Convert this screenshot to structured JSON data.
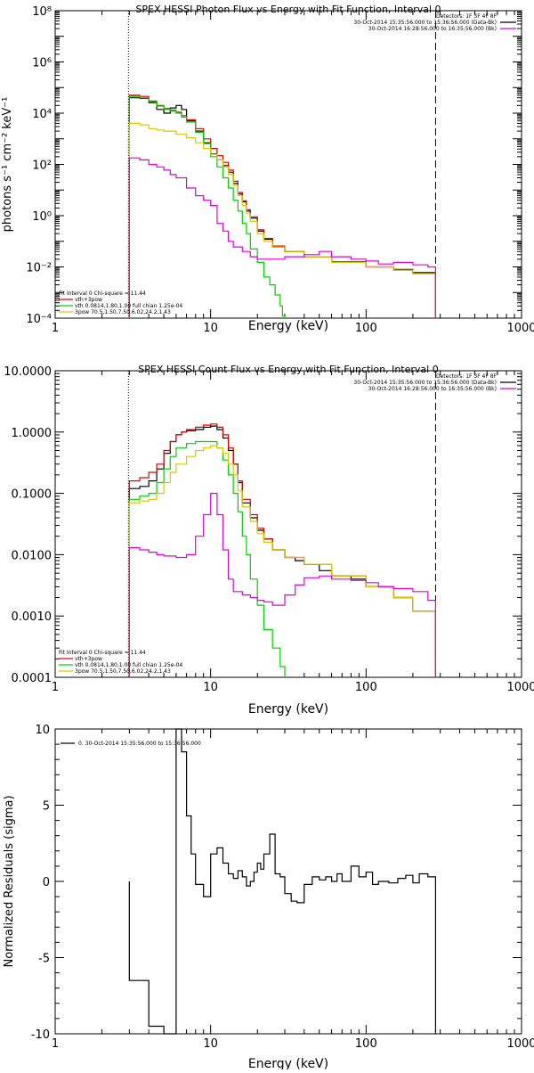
{
  "chart_data": [
    {
      "type": "line",
      "title": "SPEX HESSI Photon Flux vs Energy with Fit Function, Interval 0",
      "xlabel": "Energy (keV)",
      "ylabel": "photons s⁻¹ cm⁻² keV⁻¹",
      "xscale": "log",
      "yscale": "log",
      "xlim": [
        1,
        1000
      ],
      "ylim": [
        0.0001,
        100000000
      ],
      "x_tick_labels": [
        "1",
        "10",
        "100",
        "1000"
      ],
      "y_tick_labels": [
        "10⁻⁴",
        "10⁻²",
        "10⁰",
        "10²",
        "10⁴",
        "10⁶",
        "10⁸"
      ],
      "vlines": [
        3.0,
        280
      ],
      "legend_top": [
        "Detectors: 1F 3F 4F 8F",
        "30-Oct-2014 15:35:56.000 to 15:36:56.000 (Data-Bk)",
        "30-Oct-2014 16:28:56.000 to 16:35:56.000 (Bk)"
      ],
      "legend_bottom": [
        "Fit Interval 0   Chi-square = 11.44",
        "vth+3pow",
        "vth 0.0814,1.80,1.00  full chian 1.25e-04",
        "3pow 70.5,1.50,7.50,6.02,24.2,1.43"
      ],
      "series": [
        {
          "name": "30-Oct-2014 15:35:56.000 to 15:36:56.000 (Data-Bk)",
          "color": "#000000",
          "x": [
            3,
            3.5,
            4,
            4.5,
            5,
            5.5,
            6,
            6.5,
            7,
            8,
            9,
            10,
            11,
            12,
            13,
            14,
            15,
            16,
            17,
            18,
            20,
            22,
            25,
            30,
            40,
            60,
            100,
            150,
            200,
            280
          ],
          "y": [
            40000,
            38000,
            26000,
            14000,
            10000,
            16000,
            20000,
            14000,
            5000,
            2000,
            700,
            260,
            150,
            90,
            50,
            18,
            7,
            3.5,
            1.5,
            0.8,
            0.25,
            0.12,
            0.06,
            0.04,
            0.025,
            0.016,
            0.01,
            0.008,
            0.006,
            0.003
          ]
        },
        {
          "name": "vth+3pow",
          "color": "#e00000",
          "x": [
            3,
            3.5,
            4,
            4.5,
            5,
            5.5,
            6,
            6.5,
            7,
            8,
            9,
            10,
            11,
            12,
            13,
            14,
            15,
            16,
            17,
            18,
            20,
            22,
            25,
            30,
            40,
            60,
            100,
            150,
            200,
            280
          ],
          "y": [
            50000,
            45000,
            30000,
            20000,
            15000,
            13000,
            11000,
            8000,
            5500,
            2500,
            1000,
            420,
            220,
            120,
            60,
            22,
            8,
            3.8,
            1.7,
            0.9,
            0.28,
            0.13,
            0.065,
            0.04,
            0.025,
            0.016,
            0.01,
            0.0075,
            0.0055,
            0.003
          ]
        },
        {
          "name": "vth",
          "color": "#00d000",
          "x": [
            3,
            3.5,
            4,
            4.5,
            5,
            5.5,
            6,
            6.5,
            7,
            8,
            9,
            10,
            11,
            12,
            13,
            14,
            15,
            16,
            17,
            18,
            20,
            22,
            24,
            26,
            28,
            29,
            30
          ],
          "y": [
            45000,
            40000,
            28000,
            19000,
            14000,
            12000,
            10000,
            7000,
            4500,
            1800,
            650,
            200,
            80,
            30,
            12,
            4,
            1.5,
            0.5,
            0.2,
            0.05,
            0.015,
            0.004,
            0.002,
            0.0008,
            0.0003,
            0.00012,
            0.0001
          ]
        },
        {
          "name": "3pow",
          "color": "#d8c800",
          "x": [
            3,
            3.5,
            4,
            4.5,
            5,
            6,
            7,
            8,
            9,
            10,
            11,
            12,
            13,
            14,
            15,
            16,
            17,
            18,
            20,
            22,
            25,
            30,
            40,
            60,
            100,
            150,
            200,
            280
          ],
          "y": [
            4000,
            3500,
            2500,
            2200,
            2000,
            1500,
            1100,
            700,
            420,
            250,
            150,
            80,
            40,
            15,
            6,
            2.5,
            1.2,
            0.6,
            0.2,
            0.1,
            0.06,
            0.04,
            0.025,
            0.015,
            0.01,
            0.0075,
            0.0055,
            0.003
          ]
        },
        {
          "name": "30-Oct-2014 16:28:56.000 to 16:35:56.000 (Bk)",
          "color": "#e000e0",
          "x": [
            3,
            3.5,
            4,
            4.5,
            5,
            5.5,
            6,
            7,
            8,
            9,
            10,
            11,
            12,
            13,
            14,
            16,
            18,
            20,
            22,
            25,
            30,
            35,
            40,
            50,
            60,
            80,
            100,
            120,
            150,
            200,
            250,
            280
          ],
          "y": [
            180,
            150,
            100,
            80,
            60,
            40,
            30,
            12,
            6,
            4,
            2.5,
            0.5,
            0.25,
            0.1,
            0.06,
            0.04,
            0.025,
            0.02,
            0.02,
            0.02,
            0.025,
            0.025,
            0.03,
            0.04,
            0.025,
            0.02,
            0.017,
            0.013,
            0.015,
            0.012,
            0.01,
            0.008
          ]
        }
      ]
    },
    {
      "type": "line",
      "title": "SPEX HESSI Count Flux vs Energy with Fit Function, Interval 0",
      "xlabel": "Energy (keV)",
      "ylabel": "",
      "xscale": "log",
      "yscale": "log",
      "xlim": [
        1,
        1000
      ],
      "ylim": [
        0.0001,
        10
      ],
      "x_tick_labels": [
        "1",
        "10",
        "100",
        "1000"
      ],
      "y_tick_labels": [
        "0.0001",
        "0.0010",
        "0.0100",
        "0.1000",
        "1.0000",
        "10.0000"
      ],
      "vlines": [
        3.0,
        280
      ],
      "legend_top": [
        "Detectors: 1F 3F 4F 8F",
        "30-Oct-2014 15:35:56.000 to 15:36:56.000 (Data-Bk)",
        "30-Oct-2014 16:28:56.000 to 16:35:56.000 (Bk)"
      ],
      "legend_bottom": [
        "Fit Interval 0   Chi-square = 11.44",
        "vth+3pow",
        "vth 0.0814,1.80,1.00  full chian 1.25e-04",
        "3pow 70.5,1.50,7.50,6.02,24.2,1.43"
      ],
      "series": [
        {
          "name": "30-Oct-2014 15:35:56.000 to 15:36:56.000 (Data-Bk)",
          "color": "#000000",
          "x": [
            3,
            3.5,
            4,
            4.5,
            5,
            5.5,
            6,
            6.5,
            7,
            8,
            9,
            10,
            11,
            12,
            13,
            14,
            15,
            16,
            18,
            20,
            22,
            25,
            30,
            35,
            40,
            50,
            60,
            80,
            100,
            150,
            200,
            280
          ],
          "y": [
            0.12,
            0.13,
            0.16,
            0.25,
            0.45,
            0.7,
            0.9,
            1.0,
            1.05,
            1.1,
            1.2,
            1.25,
            1.1,
            0.8,
            0.5,
            0.3,
            0.15,
            0.07,
            0.04,
            0.025,
            0.018,
            0.012,
            0.009,
            0.008,
            0.007,
            0.0055,
            0.0045,
            0.004,
            0.003,
            0.002,
            0.0012,
            0.0006
          ]
        },
        {
          "name": "vth+3pow",
          "color": "#e00000",
          "x": [
            3,
            3.5,
            4,
            4.5,
            5,
            5.5,
            6,
            6.5,
            7,
            8,
            9,
            10,
            11,
            12,
            13,
            14,
            15,
            16,
            18,
            20,
            22,
            25,
            30,
            40,
            60,
            100,
            150,
            200,
            280
          ],
          "y": [
            0.16,
            0.18,
            0.22,
            0.3,
            0.5,
            0.7,
            0.9,
            1.0,
            1.1,
            1.2,
            1.3,
            1.35,
            1.2,
            0.9,
            0.55,
            0.3,
            0.16,
            0.08,
            0.045,
            0.027,
            0.018,
            0.012,
            0.009,
            0.007,
            0.0045,
            0.003,
            0.002,
            0.0012,
            0.0006
          ]
        },
        {
          "name": "vth",
          "color": "#00d000",
          "x": [
            3,
            3.5,
            4,
            4.5,
            5,
            5.5,
            6,
            7,
            8,
            9,
            10,
            11,
            12,
            13,
            14,
            15,
            16,
            17,
            18,
            20,
            22,
            25,
            28,
            30
          ],
          "y": [
            0.08,
            0.09,
            0.1,
            0.15,
            0.25,
            0.4,
            0.55,
            0.65,
            0.7,
            0.7,
            0.7,
            0.55,
            0.35,
            0.2,
            0.1,
            0.05,
            0.02,
            0.01,
            0.004,
            0.0015,
            0.0006,
            0.0003,
            0.00015,
            0.0001
          ]
        },
        {
          "name": "3pow",
          "color": "#d8c800",
          "x": [
            3,
            3.5,
            4,
            4.5,
            5,
            5.5,
            6,
            7,
            8,
            9,
            10,
            11,
            12,
            13,
            14,
            15,
            16,
            18,
            20,
            22,
            25,
            30,
            40,
            60,
            100,
            150,
            200,
            280
          ],
          "y": [
            0.07,
            0.075,
            0.08,
            0.1,
            0.15,
            0.22,
            0.3,
            0.4,
            0.5,
            0.55,
            0.6,
            0.55,
            0.45,
            0.3,
            0.2,
            0.11,
            0.06,
            0.035,
            0.022,
            0.016,
            0.012,
            0.009,
            0.007,
            0.0045,
            0.003,
            0.002,
            0.0012,
            0.0006
          ]
        },
        {
          "name": "30-Oct-2014 16:28:56.000 to 16:35:56.000 (Bk)",
          "color": "#e000e0",
          "x": [
            3,
            3.5,
            4,
            4.5,
            5,
            6,
            7,
            8,
            9,
            10,
            11,
            12,
            13,
            14,
            16,
            18,
            20,
            22,
            25,
            30,
            35,
            40,
            50,
            60,
            80,
            100,
            120,
            150,
            200,
            250,
            280
          ],
          "y": [
            0.013,
            0.012,
            0.011,
            0.01,
            0.0095,
            0.009,
            0.01,
            0.02,
            0.045,
            0.1,
            0.045,
            0.012,
            0.004,
            0.0025,
            0.0022,
            0.002,
            0.0018,
            0.0017,
            0.0015,
            0.0022,
            0.0032,
            0.0042,
            0.0045,
            0.004,
            0.0038,
            0.0035,
            0.003,
            0.0028,
            0.0025,
            0.0018,
            0.0013
          ]
        }
      ]
    },
    {
      "type": "line",
      "title": "",
      "xlabel": "Energy (keV)",
      "ylabel": "Normalized Residuals (sigma)",
      "xscale": "log",
      "yscale": "linear",
      "xlim": [
        1,
        1000
      ],
      "ylim": [
        -10,
        10
      ],
      "x_tick_labels": [
        "1",
        "10",
        "100",
        "1000"
      ],
      "y_tick_labels": [
        "-10",
        "-5",
        "0",
        "5",
        "10"
      ],
      "y_ticks": [
        -10,
        -5,
        0,
        5,
        10
      ],
      "legend": [
        "0. 30-Oct-2014 15:35:56.000 to 15:36:56.000"
      ],
      "series": [
        {
          "name": "0. 30-Oct-2014 15:35:56.000 to 15:36:56.000",
          "color": "#000000",
          "step": true,
          "x": [
            3,
            4,
            5,
            6,
            6.5,
            7,
            7.5,
            8,
            9,
            10,
            11,
            12,
            13,
            14,
            15,
            16,
            17,
            18,
            19,
            20,
            21,
            22,
            24,
            26,
            28,
            30,
            33,
            36,
            40,
            45,
            50,
            55,
            60,
            65,
            70,
            80,
            90,
            100,
            110,
            120,
            140,
            160,
            180,
            200,
            220,
            250,
            280
          ],
          "y": [
            -6.5,
            -9.5,
            -10,
            10,
            8.5,
            4.3,
            1.8,
            -0.2,
            -1.0,
            1.8,
            2.2,
            1.2,
            0.5,
            0.2,
            0.7,
            0.3,
            -0.3,
            0.0,
            0.6,
            1.2,
            0.8,
            1.8,
            3.1,
            0.5,
            0.3,
            -0.8,
            -1.3,
            -1.4,
            -0.2,
            0.3,
            0.1,
            0.3,
            0.0,
            0.5,
            0.0,
            1.0,
            0.3,
            0.6,
            -0.2,
            0.0,
            -0.1,
            0.2,
            0.4,
            -0.1,
            0.5,
            0.3,
            0.0
          ]
        }
      ]
    }
  ]
}
